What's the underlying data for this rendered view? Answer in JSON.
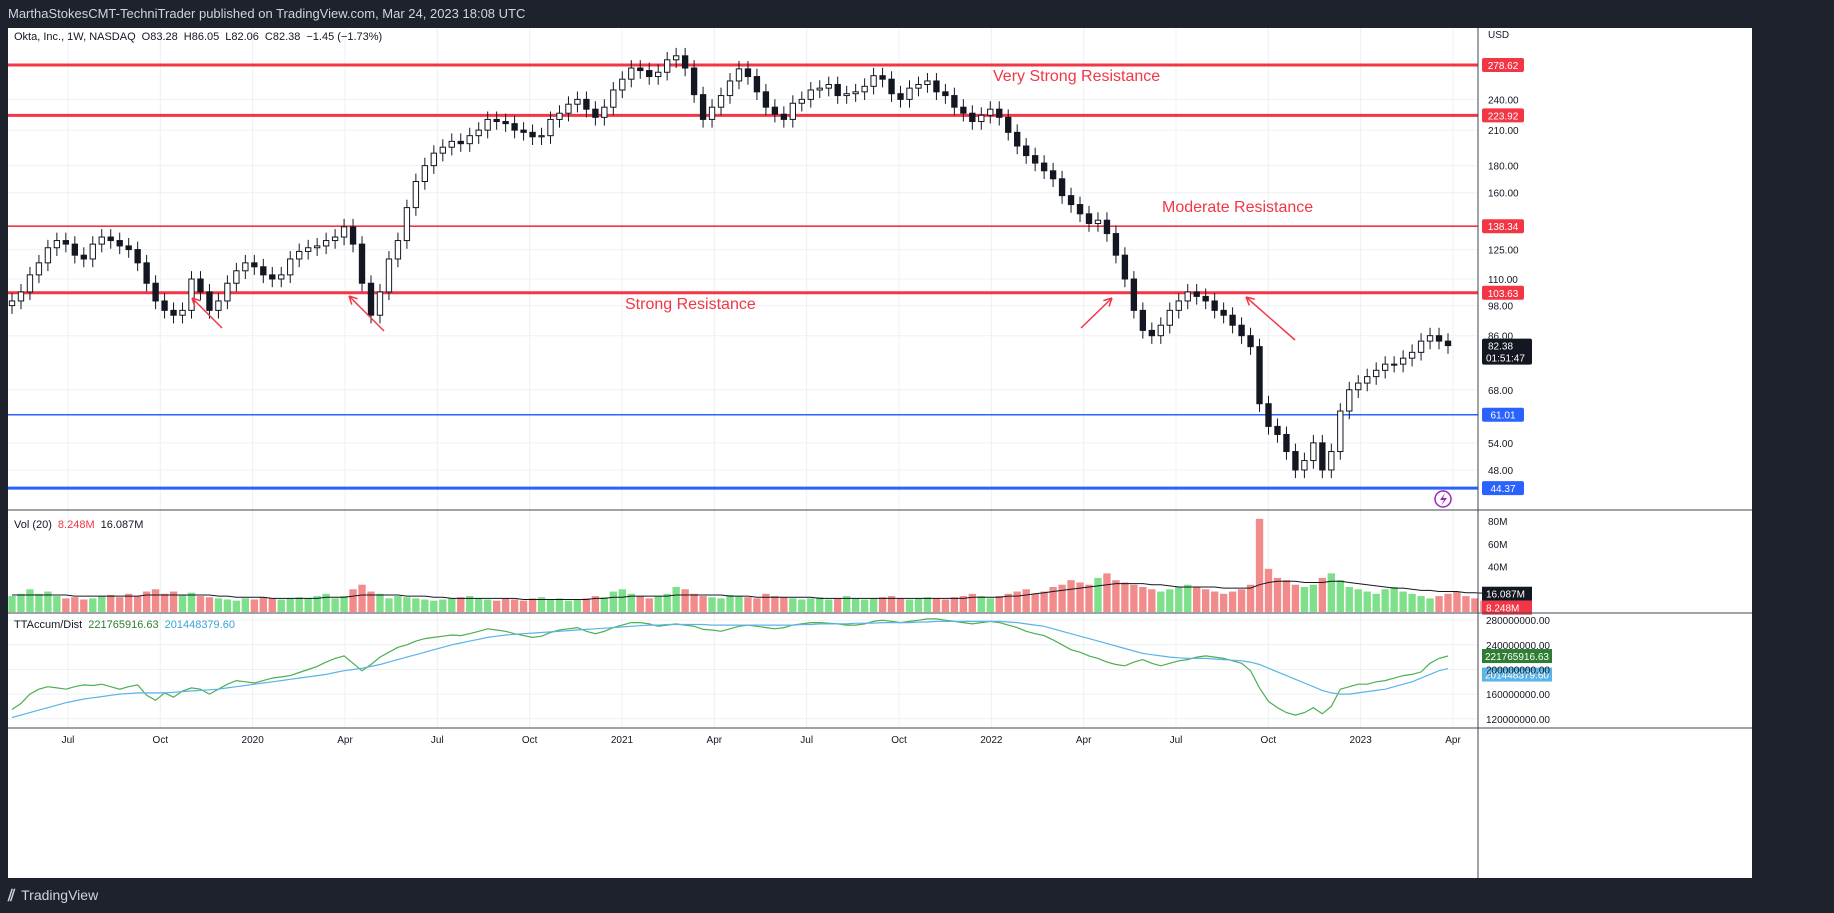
{
  "header": {
    "published": "MarthaStokesCMT-TechniTrader published on TradingView.com, Mar 24, 2023 18:08 UTC"
  },
  "footer": {
    "brand": "TradingView",
    "logo_icon": "tradingview-logo-icon"
  },
  "legend": {
    "symbol": "Okta, Inc., 1W, NASDAQ",
    "open_label": "O",
    "open": "83.28",
    "high_label": "H",
    "high": "86.05",
    "low_label": "L",
    "low": "82.06",
    "close_label": "C",
    "close": "82.38",
    "change": "−1.45 (−1.73%)",
    "vol_label": "Vol (20)",
    "vol_value": "8.248M",
    "vol_ma": "16.087M",
    "ad_label": "TTAccum/Dist",
    "ad_value": "221765916.63",
    "ad_ma": "201448379.60"
  },
  "colors": {
    "up": "#26a69a",
    "down": "#ef5350",
    "resistance": "#f23645",
    "support": "#2962ff",
    "vol_up": "#7ee08a",
    "vol_down": "#f28b8b",
    "ad_line": "#4caf50",
    "ad_ma": "#5ab4e8"
  },
  "annotations": [
    {
      "text": "Very Strong Resistance",
      "level": 278.62
    },
    {
      "text": "Moderate Resistance",
      "level": 138.34
    },
    {
      "text": "Strong Resistance",
      "level": 103.63
    }
  ],
  "chart_data": [
    {
      "type": "candlestick",
      "title": "Okta, Inc., 1W, NASDAQ",
      "unit": "USD",
      "x_tick_labels": [
        "Jul",
        "Oct",
        "2020",
        "Apr",
        "Jul",
        "Oct",
        "2021",
        "Apr",
        "Jul",
        "Oct",
        "2022",
        "Apr",
        "Jul",
        "Oct",
        "2023",
        "Apr"
      ],
      "y_tick_labels": [
        "240.00",
        "210.00",
        "180.00",
        "160.00",
        "125.00",
        "110.00",
        "98.00",
        "86.00",
        "68.00",
        "54.00",
        "48.00"
      ],
      "y_ticks": [
        240,
        210,
        180,
        160,
        125,
        110,
        98,
        86,
        68,
        54,
        48
      ],
      "scale": "log",
      "horizontal_lines": [
        {
          "value": 278.62,
          "label": "278.62",
          "color": "#f23645"
        },
        {
          "value": 223.92,
          "label": "223.92",
          "color": "#f23645"
        },
        {
          "value": 138.34,
          "label": "138.34",
          "color": "#f23645"
        },
        {
          "value": 103.63,
          "label": "103.63",
          "color": "#f23645"
        },
        {
          "value": 61.01,
          "label": "61.01",
          "color": "#2962ff"
        },
        {
          "value": 44.37,
          "label": "44.37",
          "color": "#2962ff"
        }
      ],
      "last_price": {
        "value": 82.38,
        "label": "82.38",
        "countdown": "01:51:47"
      },
      "close_series": [
        100,
        104,
        112,
        118,
        126,
        130,
        128,
        122,
        120,
        128,
        132,
        130,
        127,
        125,
        118,
        108,
        100,
        96,
        94,
        96,
        110,
        104,
        96,
        100,
        108,
        114,
        118,
        116,
        112,
        110,
        112,
        120,
        124,
        126,
        127,
        130,
        132,
        138,
        128,
        108,
        94,
        104,
        120,
        130,
        150,
        168,
        180,
        190,
        195,
        200,
        198,
        205,
        210,
        220,
        218,
        216,
        210,
        208,
        204,
        205,
        220,
        226,
        235,
        240,
        230,
        222,
        232,
        250,
        262,
        275,
        272,
        265,
        270,
        285,
        290,
        275,
        245,
        220,
        232,
        244,
        260,
        274,
        265,
        248,
        232,
        225,
        220,
        236,
        240,
        250,
        252,
        256,
        244,
        246,
        248,
        254,
        266,
        262,
        246,
        240,
        252,
        256,
        260,
        248,
        244,
        232,
        226,
        218,
        224,
        230,
        222,
        208,
        196,
        188,
        182,
        176,
        170,
        158,
        152,
        146,
        140,
        142,
        134,
        122,
        110,
        96,
        88,
        86,
        90,
        96,
        100,
        104,
        102,
        100,
        96,
        94,
        90,
        86,
        82,
        64,
        58,
        56,
        52,
        48,
        50,
        54,
        48,
        52,
        62,
        68,
        70,
        72,
        74,
        76,
        76,
        78,
        80,
        84,
        86,
        84,
        82.38
      ]
    },
    {
      "type": "bar",
      "title": "Vol (20)",
      "y_tick_labels": [
        "80M",
        "60M",
        "40M"
      ],
      "y_ticks": [
        80,
        60,
        40
      ],
      "unit": "M",
      "last_labels": {
        "ma": "16.087M",
        "value": "8.248M"
      },
      "values": [
        14,
        16,
        20,
        16,
        18,
        14,
        12,
        13,
        11,
        12,
        14,
        15,
        13,
        16,
        14,
        18,
        20,
        16,
        18,
        15,
        17,
        14,
        13,
        12,
        11,
        10,
        12,
        11,
        13,
        12,
        11,
        12,
        13,
        12,
        14,
        16,
        12,
        14,
        20,
        24,
        18,
        16,
        12,
        14,
        13,
        12,
        11,
        10,
        11,
        12,
        13,
        14,
        12,
        11,
        10,
        12,
        11,
        10,
        12,
        13,
        11,
        12,
        10,
        11,
        12,
        14,
        13,
        18,
        20,
        16,
        14,
        12,
        14,
        16,
        22,
        20,
        16,
        14,
        13,
        12,
        15,
        14,
        13,
        12,
        16,
        14,
        13,
        12,
        11,
        12,
        13,
        11,
        12,
        14,
        12,
        11,
        12,
        13,
        14,
        12,
        11,
        12,
        13,
        12,
        11,
        13,
        14,
        16,
        14,
        12,
        14,
        16,
        18,
        20,
        16,
        18,
        22,
        24,
        28,
        26,
        24,
        30,
        34,
        28,
        26,
        24,
        22,
        20,
        18,
        20,
        22,
        24,
        22,
        20,
        18,
        16,
        18,
        20,
        24,
        82,
        38,
        30,
        28,
        24,
        22,
        24,
        30,
        34,
        28,
        22,
        20,
        18,
        16,
        20,
        22,
        18,
        16,
        14,
        12,
        14,
        16,
        18,
        14,
        12,
        10,
        8.248
      ],
      "ma_values": [
        15,
        15,
        15,
        15,
        15,
        15,
        15,
        14,
        14,
        14,
        14,
        14,
        14,
        14,
        14,
        15,
        15,
        15,
        15,
        15,
        15,
        15,
        15,
        14,
        14,
        13,
        13,
        13,
        13,
        12,
        12,
        12,
        12,
        12,
        12,
        13,
        13,
        13,
        14,
        15,
        15,
        15,
        15,
        15,
        14,
        14,
        14,
        13,
        13,
        12,
        12,
        12,
        12,
        12,
        12,
        12,
        12,
        11,
        11,
        11,
        11,
        11,
        11,
        11,
        11,
        12,
        12,
        13,
        13,
        14,
        14,
        14,
        14,
        14,
        15,
        15,
        15,
        15,
        15,
        15,
        14,
        14,
        14,
        13,
        13,
        13,
        13,
        13,
        13,
        13,
        12,
        12,
        12,
        12,
        12,
        12,
        12,
        12,
        12,
        12,
        12,
        12,
        12,
        12,
        12,
        12,
        12,
        13,
        13,
        13,
        13,
        14,
        14,
        15,
        16,
        17,
        18,
        19,
        20,
        21,
        22,
        23,
        24,
        25,
        25,
        25,
        25,
        24,
        24,
        23,
        22,
        22,
        22,
        22,
        22,
        21,
        21,
        21,
        21,
        24,
        26,
        27,
        27,
        27,
        26,
        26,
        26,
        27,
        27,
        26,
        25,
        24,
        23,
        22,
        21,
        21,
        20,
        19,
        19,
        18,
        18,
        18,
        17,
        17,
        16.5,
        16.087
      ]
    },
    {
      "type": "line",
      "title": "TTAccum/Dist",
      "y_tick_labels": [
        "280000000.00",
        "240000000.00",
        "200000000.00",
        "160000000.00",
        "120000000.00"
      ],
      "y_ticks": [
        280,
        240,
        200,
        160,
        120
      ],
      "unit": "millions",
      "last_labels": {
        "value": "221765916.63",
        "ma": "201448379.60"
      },
      "series": [
        {
          "values": [
            135,
            145,
            160,
            168,
            172,
            170,
            168,
            172,
            175,
            174,
            176,
            172,
            168,
            172,
            175,
            158,
            150,
            162,
            155,
            165,
            170,
            168,
            160,
            168,
            176,
            182,
            180,
            178,
            182,
            186,
            188,
            190,
            195,
            200,
            205,
            212,
            218,
            222,
            210,
            198,
            208,
            220,
            228,
            236,
            240,
            246,
            250,
            252,
            254,
            256,
            255,
            258,
            262,
            266,
            264,
            262,
            258,
            255,
            252,
            254,
            260,
            264,
            266,
            268,
            262,
            258,
            262,
            268,
            272,
            276,
            276,
            274,
            270,
            272,
            274,
            272,
            270,
            265,
            264,
            262,
            266,
            270,
            272,
            270,
            268,
            266,
            268,
            272,
            274,
            276,
            276,
            275,
            274,
            272,
            272,
            274,
            278,
            280,
            278,
            276,
            278,
            280,
            282,
            282,
            280,
            278,
            276,
            274,
            276,
            278,
            276,
            272,
            268,
            262,
            258,
            255,
            248,
            240,
            232,
            228,
            222,
            218,
            212,
            208,
            206,
            212,
            216,
            210,
            206,
            210,
            214,
            216,
            220,
            222,
            220,
            218,
            214,
            210,
            198,
            170,
            148,
            138,
            130,
            126,
            130,
            138,
            128,
            140,
            168,
            172,
            176,
            176,
            180,
            182,
            186,
            190,
            192,
            196,
            210,
            218,
            221.77
          ]
        },
        {
          "values": [
            122,
            126,
            130,
            134,
            138,
            142,
            146,
            149,
            152,
            154,
            156,
            158,
            160,
            161,
            162,
            162,
            162,
            162,
            163,
            164,
            165,
            166,
            167,
            168,
            170,
            172,
            174,
            176,
            178,
            180,
            182,
            184,
            186,
            188,
            190,
            192,
            195,
            198,
            200,
            202,
            205,
            208,
            212,
            216,
            220,
            224,
            228,
            232,
            236,
            240,
            243,
            246,
            249,
            252,
            254,
            256,
            257,
            258,
            259,
            260,
            261,
            262,
            263,
            264,
            265,
            266,
            267,
            268,
            269,
            270,
            271,
            272,
            272,
            273,
            273,
            273,
            273,
            273,
            272,
            272,
            272,
            272,
            272,
            272,
            272,
            272,
            272,
            272,
            273,
            273,
            274,
            274,
            274,
            274,
            275,
            275,
            275,
            276,
            276,
            276,
            276,
            277,
            277,
            278,
            278,
            278,
            278,
            278,
            278,
            278,
            278,
            277,
            276,
            274,
            272,
            270,
            266,
            262,
            258,
            254,
            250,
            246,
            242,
            238,
            234,
            230,
            226,
            224,
            222,
            220,
            219,
            218,
            218,
            218,
            217,
            216,
            215,
            214,
            212,
            208,
            202,
            196,
            190,
            184,
            178,
            172,
            166,
            162,
            160,
            160,
            162,
            164,
            166,
            168,
            172,
            176,
            180,
            186,
            192,
            198,
            201.45
          ]
        }
      ]
    }
  ]
}
